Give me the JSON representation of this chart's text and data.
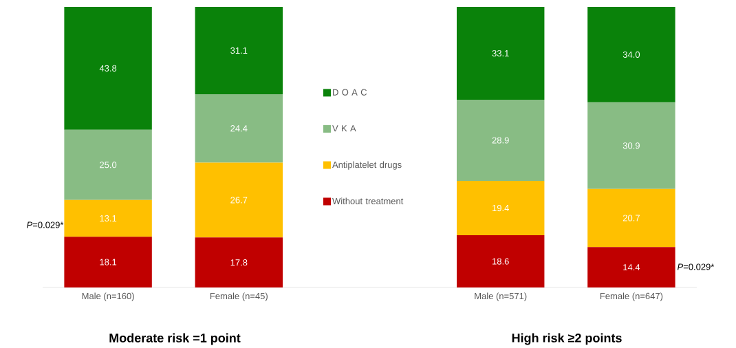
{
  "chart_data": {
    "type": "bar",
    "stacked": true,
    "legend": "center",
    "categories": [
      "Male (n=160)",
      "Female (n=45)",
      null,
      "Male (n=571)",
      "Female (n=647)"
    ],
    "series": [
      {
        "name": "Without treatment",
        "color": "#c00000",
        "values": [
          18.1,
          17.8,
          null,
          18.6,
          14.4
        ],
        "value_labels": [
          "18.1",
          "17.8",
          null,
          "18.6",
          "14.4"
        ]
      },
      {
        "name": "Antiplatelet drugs",
        "color": "#ffc000",
        "values": [
          13.1,
          26.7,
          null,
          19.4,
          20.7
        ],
        "value_labels": [
          "13.1",
          "26.7",
          null,
          "19.4",
          "20.7"
        ]
      },
      {
        "name": "V K A",
        "color": "#88bc84",
        "values": [
          25.0,
          24.4,
          null,
          28.9,
          30.9
        ],
        "value_labels": [
          "25.0",
          "24.4",
          null,
          "28.9",
          "30.9"
        ]
      },
      {
        "name": "D O A C",
        "color": "#0a820a",
        "values": [
          43.8,
          31.1,
          null,
          33.1,
          34.0
        ],
        "value_labels": [
          "43.8",
          "31.1",
          null,
          "33.1",
          "34.0"
        ]
      }
    ],
    "annotations": [
      "Moderate risk =1 point",
      "High risk ≥2 points",
      "*P*=0.029*",
      "*P*=0.029*"
    ]
  }
}
